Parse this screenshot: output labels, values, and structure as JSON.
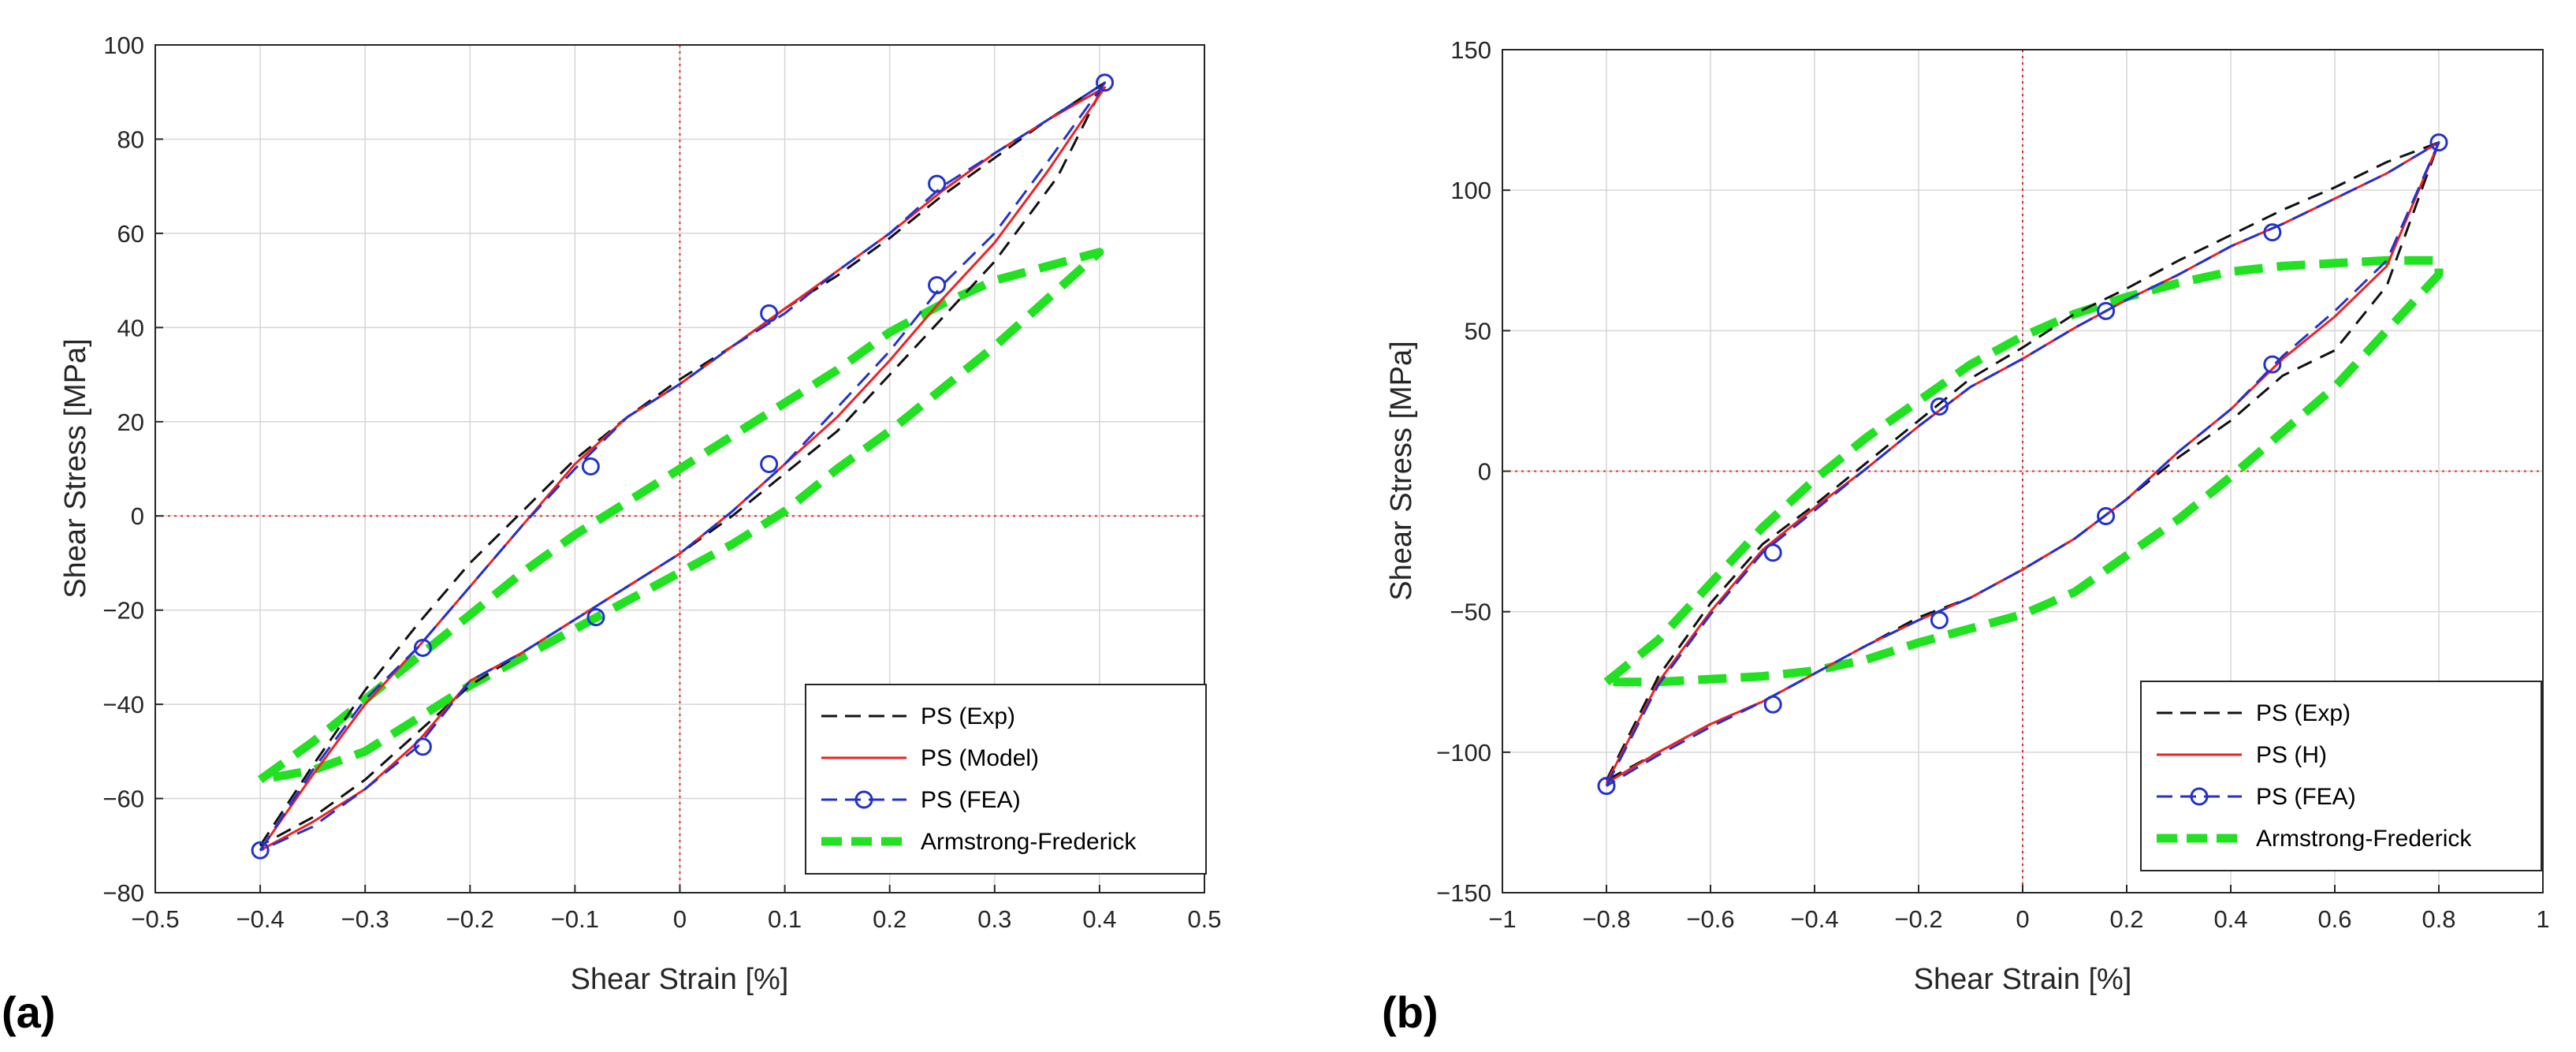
{
  "chart_data": [
    {
      "type": "line",
      "panel_label": "(a)",
      "xlabel": "Shear Strain [%]",
      "ylabel": "Shear Stress [MPa]",
      "xlim": [
        -0.5,
        0.5
      ],
      "ylim": [
        -80,
        100
      ],
      "xticks": [
        -0.5,
        -0.4,
        -0.3,
        -0.2,
        -0.1,
        0,
        0.1,
        0.2,
        0.3,
        0.4,
        0.5
      ],
      "xtick_labels": [
        "−0.5",
        "−0.4",
        "−0.3",
        "−0.2",
        "−0.1",
        "0",
        "0.1",
        "0.2",
        "0.3",
        "0.4",
        "0.5"
      ],
      "yticks": [
        -80,
        -60,
        -40,
        -20,
        0,
        20,
        40,
        60,
        80,
        100
      ],
      "ytick_labels": [
        "−80",
        "−60",
        "−40",
        "−20",
        "0",
        "20",
        "40",
        "60",
        "80",
        "100"
      ],
      "grid": true,
      "zero_lines": true,
      "legend_location": "bottom-right",
      "series": [
        {
          "name": "PS (Exp)",
          "style": "dash",
          "color": "#111111",
          "x": [
            -0.4,
            -0.35,
            -0.3,
            -0.25,
            -0.2,
            -0.15,
            -0.1,
            -0.05,
            0,
            0.05,
            0.1,
            0.15,
            0.2,
            0.25,
            0.3,
            0.35,
            0.405,
            0.36,
            0.3,
            0.25,
            0.2,
            0.15,
            0.1,
            0.05,
            0,
            -0.05,
            -0.1,
            -0.15,
            -0.2,
            -0.25,
            -0.3,
            -0.35,
            -0.4
          ],
          "y": [
            -70,
            -53,
            -37,
            -23,
            -10,
            1,
            12,
            21,
            29,
            36,
            44,
            51,
            59,
            68,
            76,
            84,
            92,
            72,
            54,
            42,
            30,
            18,
            9,
            0,
            -8,
            -15,
            -22,
            -29,
            -36,
            -46,
            -56,
            -64,
            -70
          ]
        },
        {
          "name": "PS (Model)",
          "style": "solid",
          "color": "#ee2222",
          "x": [
            -0.4,
            -0.35,
            -0.3,
            -0.25,
            -0.2,
            -0.15,
            -0.1,
            -0.05,
            0,
            0.05,
            0.1,
            0.15,
            0.2,
            0.25,
            0.3,
            0.35,
            0.405,
            0.35,
            0.3,
            0.25,
            0.2,
            0.15,
            0.1,
            0.05,
            0,
            -0.05,
            -0.1,
            -0.15,
            -0.2,
            -0.25,
            -0.3,
            -0.35,
            -0.4
          ],
          "y": [
            -71,
            -55,
            -40,
            -28,
            -15,
            -2,
            11,
            21,
            28,
            36,
            44,
            52,
            60,
            69,
            77,
            84,
            91,
            73,
            58,
            46,
            33,
            21,
            11,
            1,
            -8,
            -15,
            -22,
            -29,
            -35,
            -48,
            -58,
            -65,
            -71
          ]
        },
        {
          "name": "PS (FEA)",
          "style": "dash-marker",
          "color": "#2233cc",
          "x": [
            -0.4,
            -0.35,
            -0.3,
            -0.25,
            -0.2,
            -0.15,
            -0.1,
            -0.05,
            0,
            0.05,
            0.1,
            0.15,
            0.2,
            0.25,
            0.3,
            0.35,
            0.405,
            0.35,
            0.3,
            0.25,
            0.2,
            0.15,
            0.1,
            0.05,
            0,
            -0.05,
            -0.1,
            -0.15,
            -0.2,
            -0.25,
            -0.3,
            -0.35,
            -0.4
          ],
          "y": [
            -71,
            -54,
            -39,
            -28,
            -15,
            -2,
            10,
            21,
            28,
            36,
            43,
            52,
            60,
            70,
            77,
            84,
            92,
            75,
            60,
            49,
            35,
            23,
            11,
            1,
            -8,
            -15,
            -22,
            -29,
            -35,
            -49,
            -58,
            -66,
            -71
          ],
          "markers": [
            [
              -0.4,
              -71
            ],
            [
              -0.245,
              -28
            ],
            [
              -0.085,
              10.5
            ],
            [
              0.085,
              43
            ],
            [
              0.245,
              70.5
            ],
            [
              0.405,
              92
            ],
            [
              0.245,
              49
            ],
            [
              0.085,
              11
            ],
            [
              -0.08,
              -21.5
            ],
            [
              -0.245,
              -49
            ]
          ]
        },
        {
          "name": "Armstrong-Frederick",
          "style": "thick-dash",
          "color": "#22e022",
          "x": [
            -0.4,
            -0.35,
            -0.3,
            -0.25,
            -0.2,
            -0.15,
            -0.1,
            -0.05,
            0,
            0.05,
            0.1,
            0.15,
            0.2,
            0.25,
            0.3,
            0.35,
            0.4,
            0.35,
            0.3,
            0.25,
            0.2,
            0.15,
            0.1,
            0.05,
            0,
            -0.05,
            -0.1,
            -0.15,
            -0.2,
            -0.25,
            -0.3,
            -0.35,
            -0.4
          ],
          "y": [
            -56,
            -48,
            -39,
            -30,
            -21,
            -12,
            -4,
            3,
            10,
            17,
            24,
            31,
            39,
            45,
            50,
            53,
            56,
            46,
            36,
            27,
            18,
            10,
            1,
            -6,
            -12,
            -18,
            -24,
            -30,
            -36,
            -43,
            -50,
            -54,
            -56
          ]
        }
      ]
    },
    {
      "type": "line",
      "panel_label": "(b)",
      "xlabel": "Shear Strain [%]",
      "ylabel": "Shear Stress [MPa]",
      "xlim": [
        -1,
        1
      ],
      "ylim": [
        -150,
        150
      ],
      "xticks": [
        -1,
        -0.8,
        -0.6,
        -0.4,
        -0.2,
        0,
        0.2,
        0.4,
        0.6,
        0.8,
        1
      ],
      "xtick_labels": [
        "−1",
        "−0.8",
        "−0.6",
        "−0.4",
        "−0.2",
        "0",
        "0.2",
        "0.4",
        "0.6",
        "0.8",
        "1"
      ],
      "yticks": [
        -150,
        -100,
        -50,
        0,
        50,
        100,
        150
      ],
      "ytick_labels": [
        "−150",
        "−100",
        "−50",
        "0",
        "50",
        "100",
        "150"
      ],
      "grid": true,
      "zero_lines": true,
      "legend_location": "bottom-right",
      "series": [
        {
          "name": "PS (Exp)",
          "style": "dash",
          "color": "#111111",
          "x": [
            -0.8,
            -0.7,
            -0.6,
            -0.5,
            -0.4,
            -0.3,
            -0.2,
            -0.1,
            0,
            0.1,
            0.2,
            0.3,
            0.4,
            0.5,
            0.6,
            0.7,
            0.8,
            0.7,
            0.6,
            0.5,
            0.4,
            0.3,
            0.2,
            0.1,
            0,
            -0.1,
            -0.2,
            -0.3,
            -0.4,
            -0.5,
            -0.6,
            -0.7,
            -0.8
          ],
          "y": [
            -110,
            -73,
            -47,
            -26,
            -12,
            3,
            18,
            33,
            44,
            56,
            65,
            75,
            84,
            93,
            101,
            110,
            117,
            66,
            43,
            34,
            18,
            5,
            -10,
            -24,
            -35,
            -45,
            -52,
            -62,
            -72,
            -82,
            -90,
            -100,
            -110
          ]
        },
        {
          "name": "PS (H)",
          "style": "solid",
          "color": "#ee2222",
          "x": [
            -0.8,
            -0.7,
            -0.6,
            -0.5,
            -0.4,
            -0.3,
            -0.2,
            -0.1,
            0,
            0.1,
            0.2,
            0.3,
            0.4,
            0.5,
            0.6,
            0.7,
            0.8,
            0.7,
            0.6,
            0.5,
            0.4,
            0.3,
            0.2,
            0.1,
            0,
            -0.1,
            -0.2,
            -0.3,
            -0.4,
            -0.5,
            -0.6,
            -0.7,
            -0.8
          ],
          "y": [
            -111,
            -75,
            -50,
            -28,
            -13,
            1,
            16,
            30,
            40,
            51,
            61,
            70,
            80,
            88,
            97,
            106,
            117,
            73,
            55,
            40,
            22,
            7,
            -10,
            -24,
            -35,
            -45,
            -53,
            -62,
            -72,
            -82,
            -90,
            -100,
            -111
          ]
        },
        {
          "name": "PS (FEA)",
          "style": "dash-marker",
          "color": "#2233cc",
          "x": [
            -0.8,
            -0.7,
            -0.6,
            -0.5,
            -0.4,
            -0.3,
            -0.2,
            -0.1,
            0,
            0.1,
            0.2,
            0.3,
            0.4,
            0.5,
            0.6,
            0.7,
            0.8,
            0.7,
            0.6,
            0.5,
            0.4,
            0.3,
            0.2,
            0.1,
            0,
            -0.1,
            -0.2,
            -0.3,
            -0.4,
            -0.5,
            -0.6,
            -0.7,
            -0.8
          ],
          "y": [
            -112,
            -76,
            -51,
            -29,
            -14,
            1,
            16,
            30,
            40,
            51,
            61,
            70,
            80,
            88,
            97,
            106,
            117,
            75,
            57,
            41,
            22,
            7,
            -10,
            -24,
            -35,
            -45,
            -53,
            -62,
            -72,
            -82,
            -91,
            -101,
            -112
          ],
          "markers": [
            [
              -0.8,
              -112
            ],
            [
              -0.48,
              -29
            ],
            [
              -0.16,
              23
            ],
            [
              0.16,
              57
            ],
            [
              0.48,
              85
            ],
            [
              0.8,
              117
            ],
            [
              0.48,
              38
            ],
            [
              0.16,
              -16
            ],
            [
              -0.16,
              -53
            ],
            [
              -0.48,
              -83
            ]
          ]
        },
        {
          "name": "Armstrong-Frederick",
          "style": "thick-dash",
          "color": "#22e022",
          "x": [
            -0.8,
            -0.7,
            -0.6,
            -0.5,
            -0.4,
            -0.3,
            -0.2,
            -0.1,
            0,
            0.1,
            0.2,
            0.3,
            0.4,
            0.5,
            0.6,
            0.7,
            0.8,
            0.8,
            0.7,
            0.6,
            0.5,
            0.4,
            0.3,
            0.2,
            0.1,
            0,
            -0.1,
            -0.2,
            -0.3,
            -0.4,
            -0.5,
            -0.6,
            -0.7,
            -0.8
          ],
          "y": [
            -75,
            -60,
            -40,
            -20,
            -3,
            12,
            25,
            38,
            48,
            56,
            62,
            67,
            71,
            73,
            74,
            75,
            75,
            70,
            50,
            30,
            14,
            -2,
            -17,
            -30,
            -43,
            -51,
            -56,
            -61,
            -67,
            -71,
            -73,
            -74,
            -75,
            -75
          ]
        }
      ]
    }
  ]
}
